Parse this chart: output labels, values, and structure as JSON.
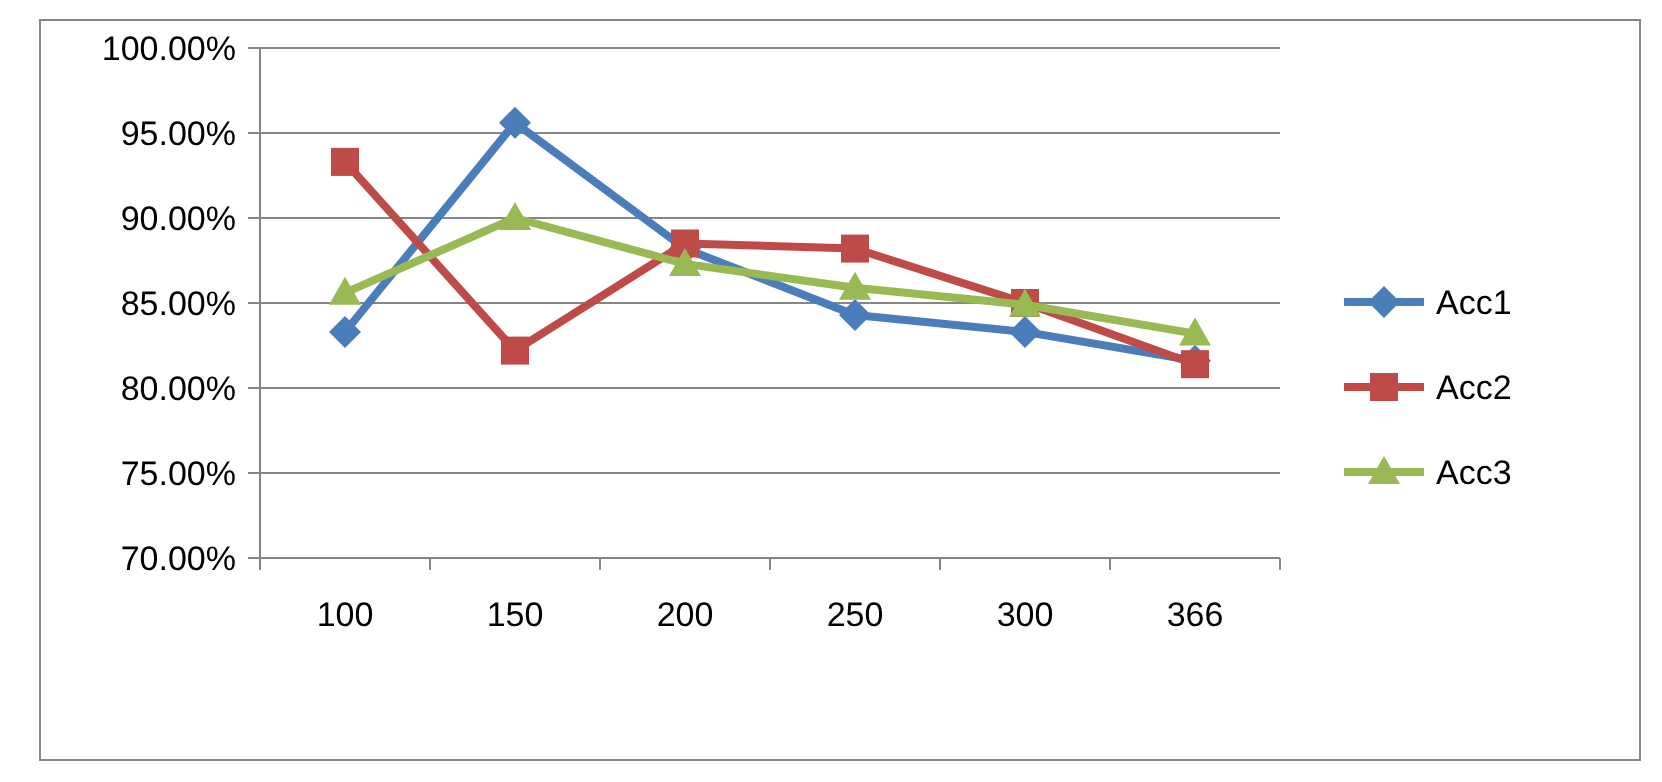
{
  "chart_data": {
    "type": "line",
    "categories": [
      "100",
      "150",
      "200",
      "250",
      "300",
      "366"
    ],
    "series": [
      {
        "name": "Acc1",
        "color": "#4a7ebb",
        "marker": "diamond",
        "values": [
          83.3,
          95.6,
          88.2,
          84.3,
          83.3,
          81.6
        ]
      },
      {
        "name": "Acc2",
        "color": "#be4b48",
        "marker": "square",
        "values": [
          93.3,
          82.2,
          88.5,
          88.2,
          85.0,
          81.4
        ]
      },
      {
        "name": "Acc3",
        "color": "#98b954",
        "marker": "triangle",
        "values": [
          85.6,
          90.0,
          87.3,
          85.9,
          84.9,
          83.2
        ]
      }
    ],
    "ylim": [
      70,
      100
    ],
    "yticks": [
      {
        "value": 70,
        "label": "70.00%"
      },
      {
        "value": 75,
        "label": "75.00%"
      },
      {
        "value": 80,
        "label": "80.00%"
      },
      {
        "value": 85,
        "label": "85.00%"
      },
      {
        "value": 90,
        "label": "90.00%"
      },
      {
        "value": 95,
        "label": "95.00%"
      },
      {
        "value": 100,
        "label": "100.00%"
      }
    ],
    "grid": "y",
    "legend": "right",
    "line_style": "solid"
  }
}
